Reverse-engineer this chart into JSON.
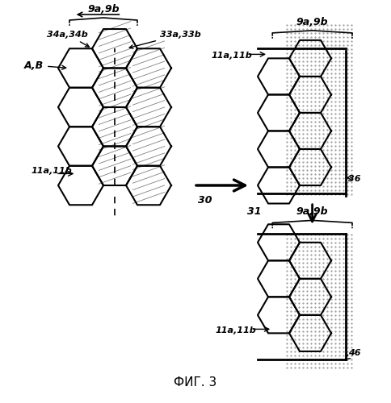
{
  "title": "ФИГ. 3",
  "bg_color": "#ffffff",
  "line_color": "#000000",
  "dot_color": "#aaaaaa",
  "labels": {
    "top_brace_left": "9a,9b",
    "label_34": "34a,34b",
    "label_33": "33a,33b",
    "label_AB": "A,B",
    "label_11_left": "11a,11b",
    "label_11_right": "11a,11b",
    "label_11_bottom": "11a,11b",
    "label_9a9b_top_right": "9a,9b",
    "label_9a9b_bottom": "9a,9b",
    "label_36": "36",
    "label_30": "30",
    "label_31": "31",
    "label_46": "46"
  }
}
